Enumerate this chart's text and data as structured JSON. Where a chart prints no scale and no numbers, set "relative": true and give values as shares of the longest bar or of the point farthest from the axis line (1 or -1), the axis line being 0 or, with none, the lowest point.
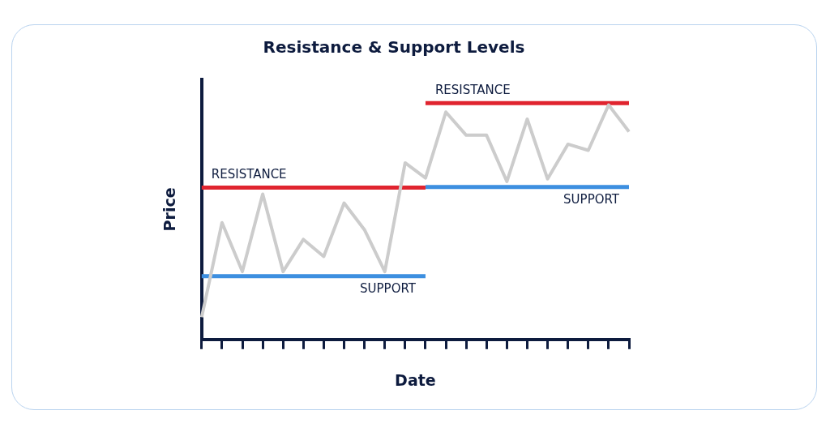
{
  "chart_data": {
    "type": "line",
    "title": "Resistance & Support Levels",
    "xlabel": "Date",
    "ylabel": "Price",
    "relative": true,
    "categories": [
      null,
      null,
      null,
      null,
      null,
      null,
      null,
      null,
      null,
      null,
      null,
      null,
      null,
      null,
      null,
      null,
      null,
      null,
      null,
      null,
      null,
      null
    ],
    "series": [
      {
        "color": "#cccccc",
        "values": [
          0.094,
          0.494,
          0.287,
          0.615,
          0.287,
          0.423,
          0.351,
          0.577,
          0.464,
          0.287,
          0.747,
          0.683,
          0.962,
          0.864,
          0.864,
          0.668,
          0.932,
          0.679,
          0.826,
          0.8,
          0.992,
          0.879
        ]
      },
      {
        "name": "RESISTANCE",
        "color": "#e0242f",
        "values": [
          0.642,
          0.642,
          0.642,
          0.642,
          0.642,
          0.642,
          0.642,
          0.642,
          0.642,
          0.642,
          0.642,
          0.642,
          null,
          null,
          null,
          null,
          null,
          null,
          null,
          null,
          null,
          null
        ]
      },
      {
        "name": "SUPPORT",
        "color": "#3d8fe0",
        "values": [
          0.268,
          0.268,
          0.268,
          0.268,
          0.268,
          0.268,
          0.268,
          0.268,
          0.268,
          0.268,
          0.268,
          0.268,
          null,
          null,
          null,
          null,
          null,
          null,
          null,
          null,
          null,
          null
        ]
      },
      {
        "name": "RESISTANCE",
        "color": "#e0242f",
        "values": [
          null,
          null,
          null,
          null,
          null,
          null,
          null,
          null,
          null,
          null,
          null,
          1.0,
          1.0,
          1.0,
          1.0,
          1.0,
          1.0,
          1.0,
          1.0,
          1.0,
          1.0,
          1.0
        ]
      },
      {
        "name": "SUPPORT",
        "color": "#3d8fe0",
        "values": [
          null,
          null,
          null,
          null,
          null,
          null,
          null,
          null,
          null,
          null,
          null,
          0.645,
          0.645,
          0.645,
          0.645,
          0.645,
          0.645,
          0.645,
          0.645,
          0.645,
          0.645,
          0.645
        ]
      }
    ],
    "grid": false,
    "legend": false,
    "marker": "none",
    "line_style": "solid"
  }
}
